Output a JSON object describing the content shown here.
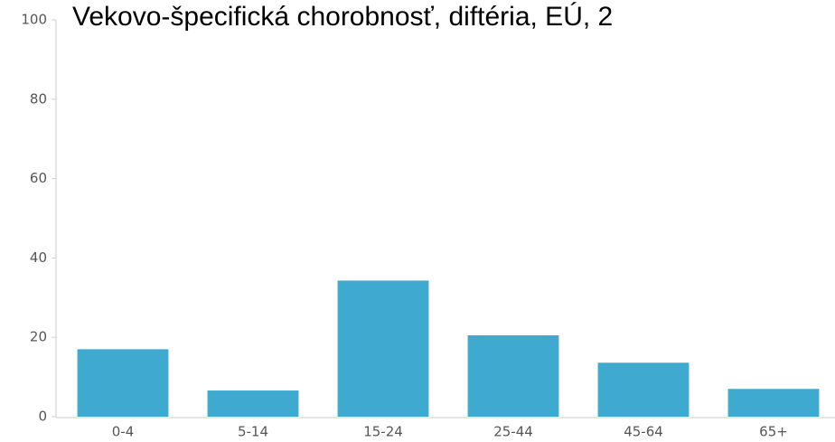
{
  "chart_data": {
    "type": "bar",
    "title": "Vekovo-špecifická chorobnosť, diftéria, EÚ, 2",
    "categories": [
      "0-4",
      "5-14",
      "15-24",
      "25-44",
      "45-64",
      "65+"
    ],
    "values": [
      17,
      6.6,
      34.3,
      20.5,
      13.6,
      7
    ],
    "color": "#3fa9d0",
    "ylim": [
      0,
      100
    ],
    "yticks": [
      0,
      20,
      40,
      60,
      80,
      100
    ],
    "grid": false
  }
}
